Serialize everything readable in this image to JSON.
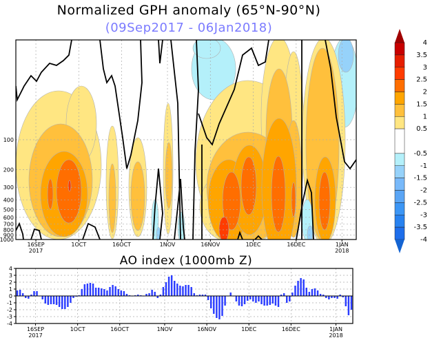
{
  "chart_data": [
    {
      "type": "contour",
      "title": "Normalized GPH anomaly (65°N-90°N)",
      "subtitle": "(09Sep2017 - 06Jan2018)",
      "x_range": [
        "2017-09-09",
        "2018-01-06"
      ],
      "x_ticks": [
        {
          "date": "2017-09-16",
          "label": "16SEP",
          "sub": "2017"
        },
        {
          "date": "2017-10-01",
          "label": "1OCT",
          "sub": ""
        },
        {
          "date": "2017-10-16",
          "label": "16OCT",
          "sub": ""
        },
        {
          "date": "2017-11-01",
          "label": "1NOV",
          "sub": ""
        },
        {
          "date": "2017-11-16",
          "label": "16NOV",
          "sub": ""
        },
        {
          "date": "2017-12-01",
          "label": "1DEC",
          "sub": ""
        },
        {
          "date": "2017-12-16",
          "label": "16DEC",
          "sub": ""
        },
        {
          "date": "2018-01-01",
          "label": "1JAN",
          "sub": "2018"
        }
      ],
      "y_scale": "log",
      "y_range_hPa": [
        1000,
        10
      ],
      "y_ticks": [
        "100",
        "200",
        "300",
        "400",
        "500",
        "600",
        "700",
        "800",
        "900",
        "1000"
      ],
      "grid": true,
      "colorbar": {
        "placement": "right",
        "labels": [
          "4",
          "3.5",
          "3",
          "2.5",
          "2",
          "1.5",
          "1",
          "0.5",
          "-0.5",
          "-1",
          "-1.5",
          "-2",
          "-2.5",
          "-3",
          "-3.5",
          "-4"
        ],
        "levels": [
          4,
          3.5,
          3,
          2.5,
          2,
          1.5,
          1,
          0.5,
          -0.5,
          -1,
          -1.5,
          -2,
          -2.5,
          -3,
          -3.5,
          -4
        ],
        "colors": [
          "#a00000",
          "#c80000",
          "#e61e00",
          "#ff3c00",
          "#ff6e00",
          "#ffa500",
          "#ffc03c",
          "#ffe682",
          "#ffffff",
          "#b4f0fa",
          "#96d2fa",
          "#78b9fa",
          "#5aa5f5",
          "#3c96f5",
          "#2882f0",
          "#1e6eeb",
          "#1464d2"
        ]
      },
      "zero_contour_color": "#000000"
    },
    {
      "type": "bar",
      "title": "AO index (1000mb Z)",
      "x_range": [
        "2017-09-09",
        "2018-01-06"
      ],
      "ylim": [
        -4,
        4
      ],
      "y_ticks": [
        "4",
        "3",
        "2",
        "1",
        "0",
        "-1",
        "-2",
        "-3",
        "-4"
      ],
      "grid": true,
      "bar_color": "#2a3cff",
      "values": [
        0.8,
        0.9,
        0.4,
        -0.3,
        -0.4,
        0.2,
        0.7,
        0.7,
        0.0,
        -0.5,
        -1.1,
        -1.3,
        -1.2,
        -1.2,
        -1.3,
        -1.6,
        -1.9,
        -1.9,
        -1.6,
        -1.0,
        -0.3,
        -0.1,
        0.1,
        1.0,
        1.7,
        1.8,
        1.9,
        1.8,
        1.2,
        1.2,
        1.1,
        1.0,
        0.8,
        1.3,
        1.6,
        1.4,
        1.0,
        0.8,
        0.7,
        0.3,
        0.1,
        0.0,
        0.1,
        0.2,
        0.1,
        0.0,
        0.3,
        0.4,
        0.9,
        0.6,
        -0.3,
        0.2,
        1.3,
        2.0,
        2.8,
        3.0,
        2.2,
        1.8,
        1.5,
        1.4,
        1.6,
        1.6,
        1.3,
        0.4,
        0.1,
        0.2,
        0.2,
        0.2,
        -0.6,
        -1.8,
        -2.6,
        -3.2,
        -3.4,
        -2.9,
        -1.4,
        0.0,
        0.5,
        0.0,
        -0.8,
        -1.4,
        -1.5,
        -1.2,
        -0.7,
        -0.5,
        -0.8,
        -1.0,
        -0.8,
        -1.2,
        -1.4,
        -1.4,
        -1.3,
        -1.1,
        -1.4,
        -1.6,
        0.2,
        0.4,
        -1.0,
        -0.8,
        0.5,
        1.5,
        2.2,
        2.6,
        2.4,
        1.2,
        0.6,
        1.0,
        1.1,
        0.8,
        0.3,
        0.2,
        -0.3,
        -0.5,
        -0.3,
        -0.3,
        -0.4,
        0.2,
        -0.2,
        -1.5,
        -2.8,
        -2.0
      ]
    }
  ]
}
